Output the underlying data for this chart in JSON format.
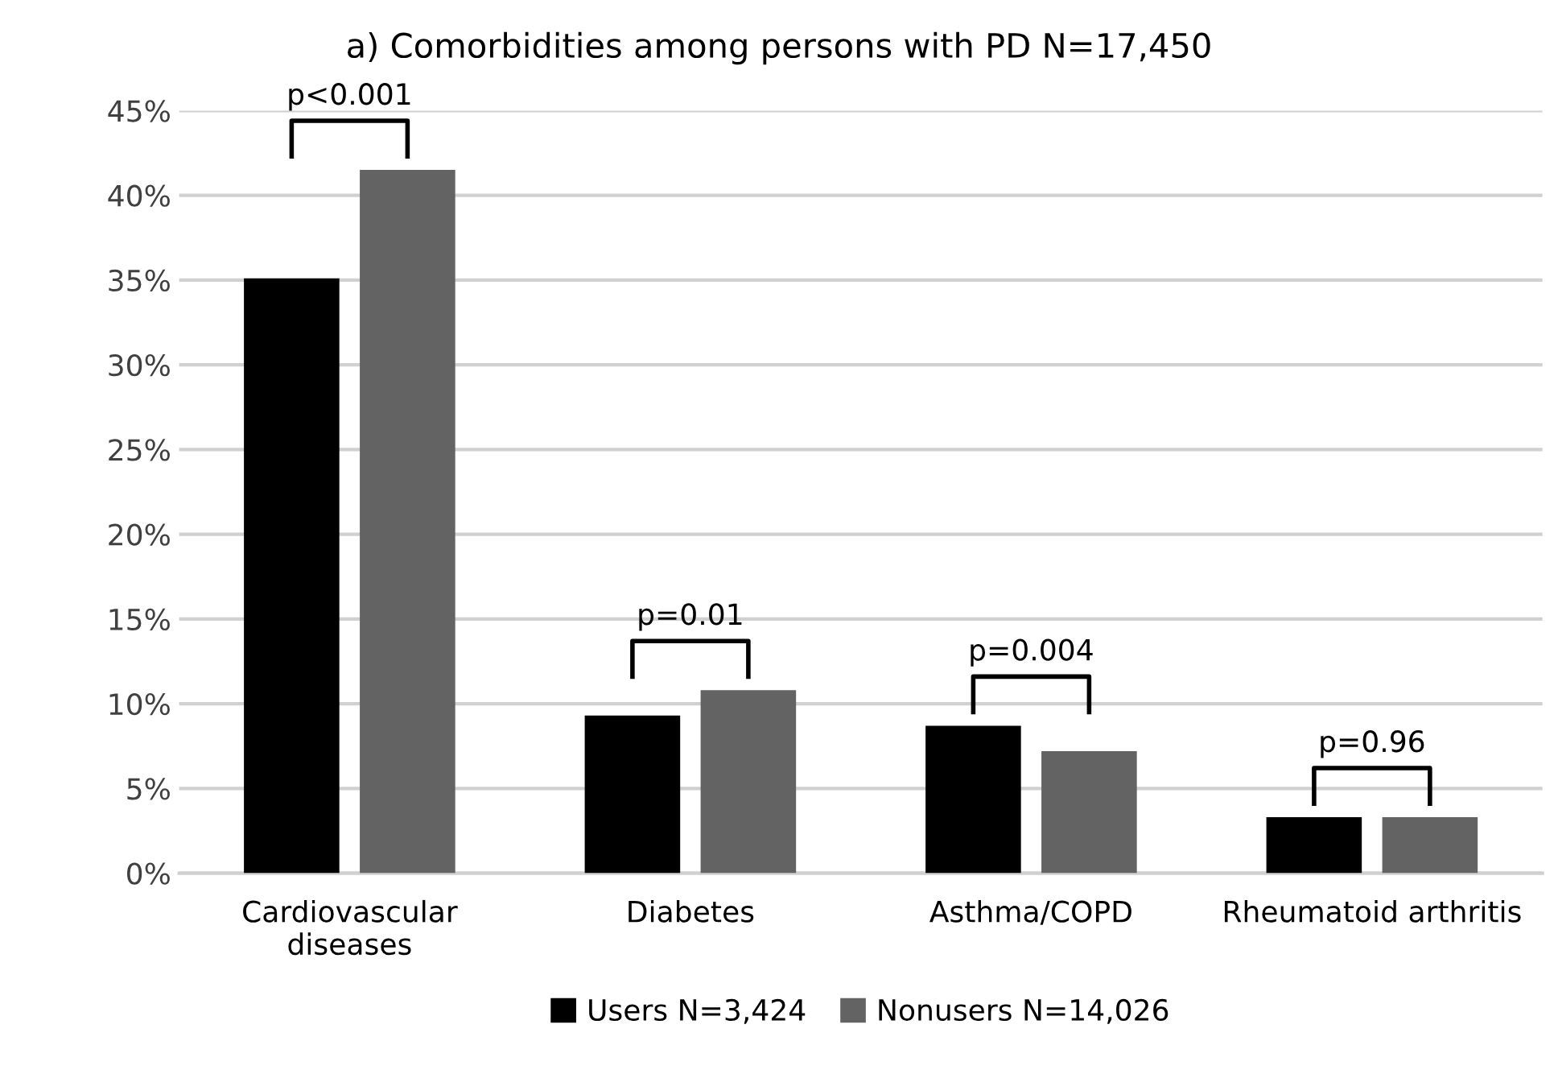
{
  "chart_data": {
    "type": "bar",
    "title": "a) Comorbidities among persons with PD N=17,450",
    "categories": [
      "Cardiovascular\ndiseases",
      "Diabetes",
      "Asthma/COPD",
      "Rheumatoid arthritis"
    ],
    "series": [
      {
        "name": "Users N=3,424",
        "color": "#000000",
        "values": [
          35.1,
          9.3,
          8.7,
          3.3
        ]
      },
      {
        "name": "Nonusers N=14,026",
        "color": "#636363",
        "values": [
          41.5,
          10.8,
          7.2,
          3.3
        ]
      }
    ],
    "ylim": [
      0,
      45
    ],
    "yticks": [
      {
        "value": 0,
        "label": "0%"
      },
      {
        "value": 5,
        "label": "5%"
      },
      {
        "value": 10,
        "label": "10%"
      },
      {
        "value": 15,
        "label": "15%"
      },
      {
        "value": 20,
        "label": "20%"
      },
      {
        "value": 25,
        "label": "25%"
      },
      {
        "value": 30,
        "label": "30%"
      },
      {
        "value": 35,
        "label": "35%"
      },
      {
        "value": 40,
        "label": "40%"
      },
      {
        "value": 45,
        "label": "45%"
      }
    ],
    "grid": "y",
    "legend": "bottom",
    "annotations": [
      "p<0.001",
      "p=0.01",
      "p=0.004",
      "p=0.96"
    ]
  }
}
